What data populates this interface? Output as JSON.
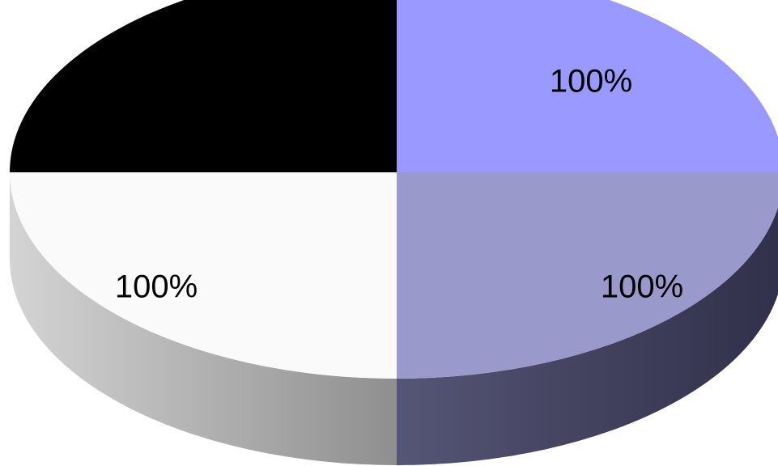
{
  "chart_data": {
    "type": "pie",
    "style": "3d",
    "slices": [
      {
        "label": "100%",
        "value": 25,
        "color": "#9999ff",
        "start_angle": 0
      },
      {
        "label": "100%",
        "value": 25,
        "color": "#9999cc",
        "start_angle": 90
      },
      {
        "label": "100%",
        "value": 25,
        "color": "#fafafa",
        "start_angle": 180
      },
      {
        "label": "",
        "value": 25,
        "color": "#000000",
        "start_angle": 270
      }
    ],
    "title": "",
    "legend": "none"
  }
}
